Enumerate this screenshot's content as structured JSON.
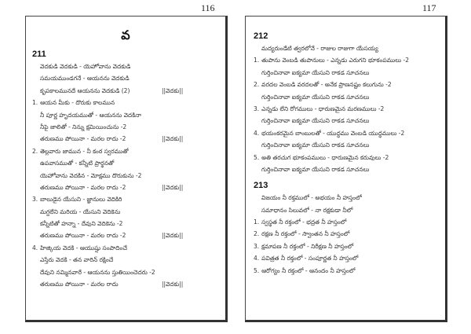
{
  "left_page": {
    "page_number": "116",
    "section_letter": "వ",
    "songs": [
      {
        "number": "211",
        "refrain_tag": "||వెదకు||",
        "lines": [
          {
            "n": "",
            "t": "వెదకుడి వెదకుడి - యెహోవాను వెదకుడి",
            "ref": false
          },
          {
            "n": "",
            "t": "సమయముండగనే - ఆయనను వెదకుడి",
            "ref": false
          },
          {
            "n": "",
            "t": "కృపకాలమునదే ఆయనను వెదకుడి (2)",
            "ref": true
          },
          {
            "n": "1.",
            "t": "ఆయన మీకు - దొరుకు కాలమున",
            "ref": false
          },
          {
            "n": "",
            "t": "నీ పూర్ణ హృదయముతో - ఆయనను వెదకినా",
            "ref": false
          },
          {
            "n": "",
            "t": "నీపై జాలితో - నిన్ను క్షమియించును -2",
            "ref": false
          },
          {
            "n": "",
            "t": "తరుణము పోయినా - మరల రాదు -2",
            "ref": true
          },
          {
            "n": "2.",
            "t": "తెల్లవారు జామున - నీ కంఠ స్వరముతో",
            "ref": false
          },
          {
            "n": "",
            "t": "ఉపవాసముతో - కన్నీటి ప్రార్థనతో",
            "ref": false
          },
          {
            "n": "",
            "t": "యెహోవాను వెదకిన - మోక్షము దొరుకును -2",
            "ref": false
          },
          {
            "n": "",
            "t": "తరుణము పోయినా - మరల రాదు -2",
            "ref": true
          },
          {
            "n": "3.",
            "t": "బాలుడైన యేసుని - జ్ఞానులు వెదికిరి",
            "ref": false
          },
          {
            "n": "",
            "t": "మగ్దలేని మరియ - యేసుని వెదికెను",
            "ref": false
          },
          {
            "n": "",
            "t": "కన్నీటితో హన్నా - దేవుని వెదికెను -2",
            "ref": false
          },
          {
            "n": "",
            "t": "తరుణము పోయినా - మరల రాదు -2",
            "ref": true
          },
          {
            "n": "4.",
            "t": "హిజ్కియ వెదకి - ఆయుష్షు సంపాదించే",
            "ref": false
          },
          {
            "n": "",
            "t": "ఎస్తేరు వెదకి - తన వారిన్ రక్షించే",
            "ref": false
          },
          {
            "n": "",
            "t": "దేవుని నమ్మినవారే - ఆయనను స్తుతియించెదరు -2",
            "ref": false
          },
          {
            "n": "",
            "t": "తరుణము పోయినా - మరల రాదు",
            "ref": true
          }
        ]
      }
    ]
  },
  "right_page": {
    "page_number": "117",
    "songs": [
      {
        "number": "212",
        "lines": [
          {
            "n": "",
            "t": "మద్యరుండేటి త్వరలోనే - రాజుల రాజుగా యేసయ్య"
          },
          {
            "n": "1.",
            "t": "తుపాను వెంబడి తుపానులు - ఎన్నడు ఎరుగని భూకంపములు -2"
          },
          {
            "n": "",
            "t": "గుర్తించినావా ఐక్యమా యేసుని రాకడ సూచనలు"
          },
          {
            "n": "2.",
            "t": "వరదల వెంబడి వరదలతో - అనేక ప్రాణనష్టం కలుగును -2"
          },
          {
            "n": "",
            "t": "గుర్తించినావా ఐక్యమా యేసుని రాకడ సూచనలు"
          },
          {
            "n": "3.",
            "t": "ఎన్నడు లేని రోగములు - ధారుణమైన మరణములు -2"
          },
          {
            "n": "",
            "t": "గుర్తించినావా ఐక్యమా యేసుని రాకడ సూచనలు"
          },
          {
            "n": "4.",
            "t": "భయంకరమైన బాంబులతో - యుద్ధము వెంబడి యుద్ధములు -2"
          },
          {
            "n": "",
            "t": "గుర్తించినావా ఐక్యమా యేసుని రాకడ సూచనలు"
          },
          {
            "n": "5.",
            "t": "అతి తరచుగ భూకంపములు - ధారుణమైన కరువులు -2"
          },
          {
            "n": "",
            "t": "గుర్తించినావా ఐక్యమా యేసుని రాకడ సూచనలు"
          }
        ]
      },
      {
        "number": "213",
        "lines": [
          {
            "n": "",
            "t": "విజయం నీ రక్తములో - అభయం నీ హస్తంలో"
          },
          {
            "n": "",
            "t": "సమాధానం సిలువలో - నా రక్షకుడా నీలో"
          },
          {
            "n": "1.",
            "t": "స్వస్థత నీ రక్తంలో - భద్రత నీ హస్తంలో"
          },
          {
            "n": "2.",
            "t": "రక్షణ నీ రక్తంలో - స్వాంతన నీ హస్తంలో"
          },
          {
            "n": "3.",
            "t": "క్షమాపణ నీ రక్తంలో - నిరీక్షణ నీ హస్తంలో"
          },
          {
            "n": "4.",
            "t": "పవిత్రత నీ రక్తంలో - సంపూర్ణత నీ హస్తంలో"
          },
          {
            "n": "5.",
            "t": "ఆరోగ్యం నీ రక్తంలో - ఆనందం నీ హస్తంలో"
          }
        ]
      }
    ]
  }
}
